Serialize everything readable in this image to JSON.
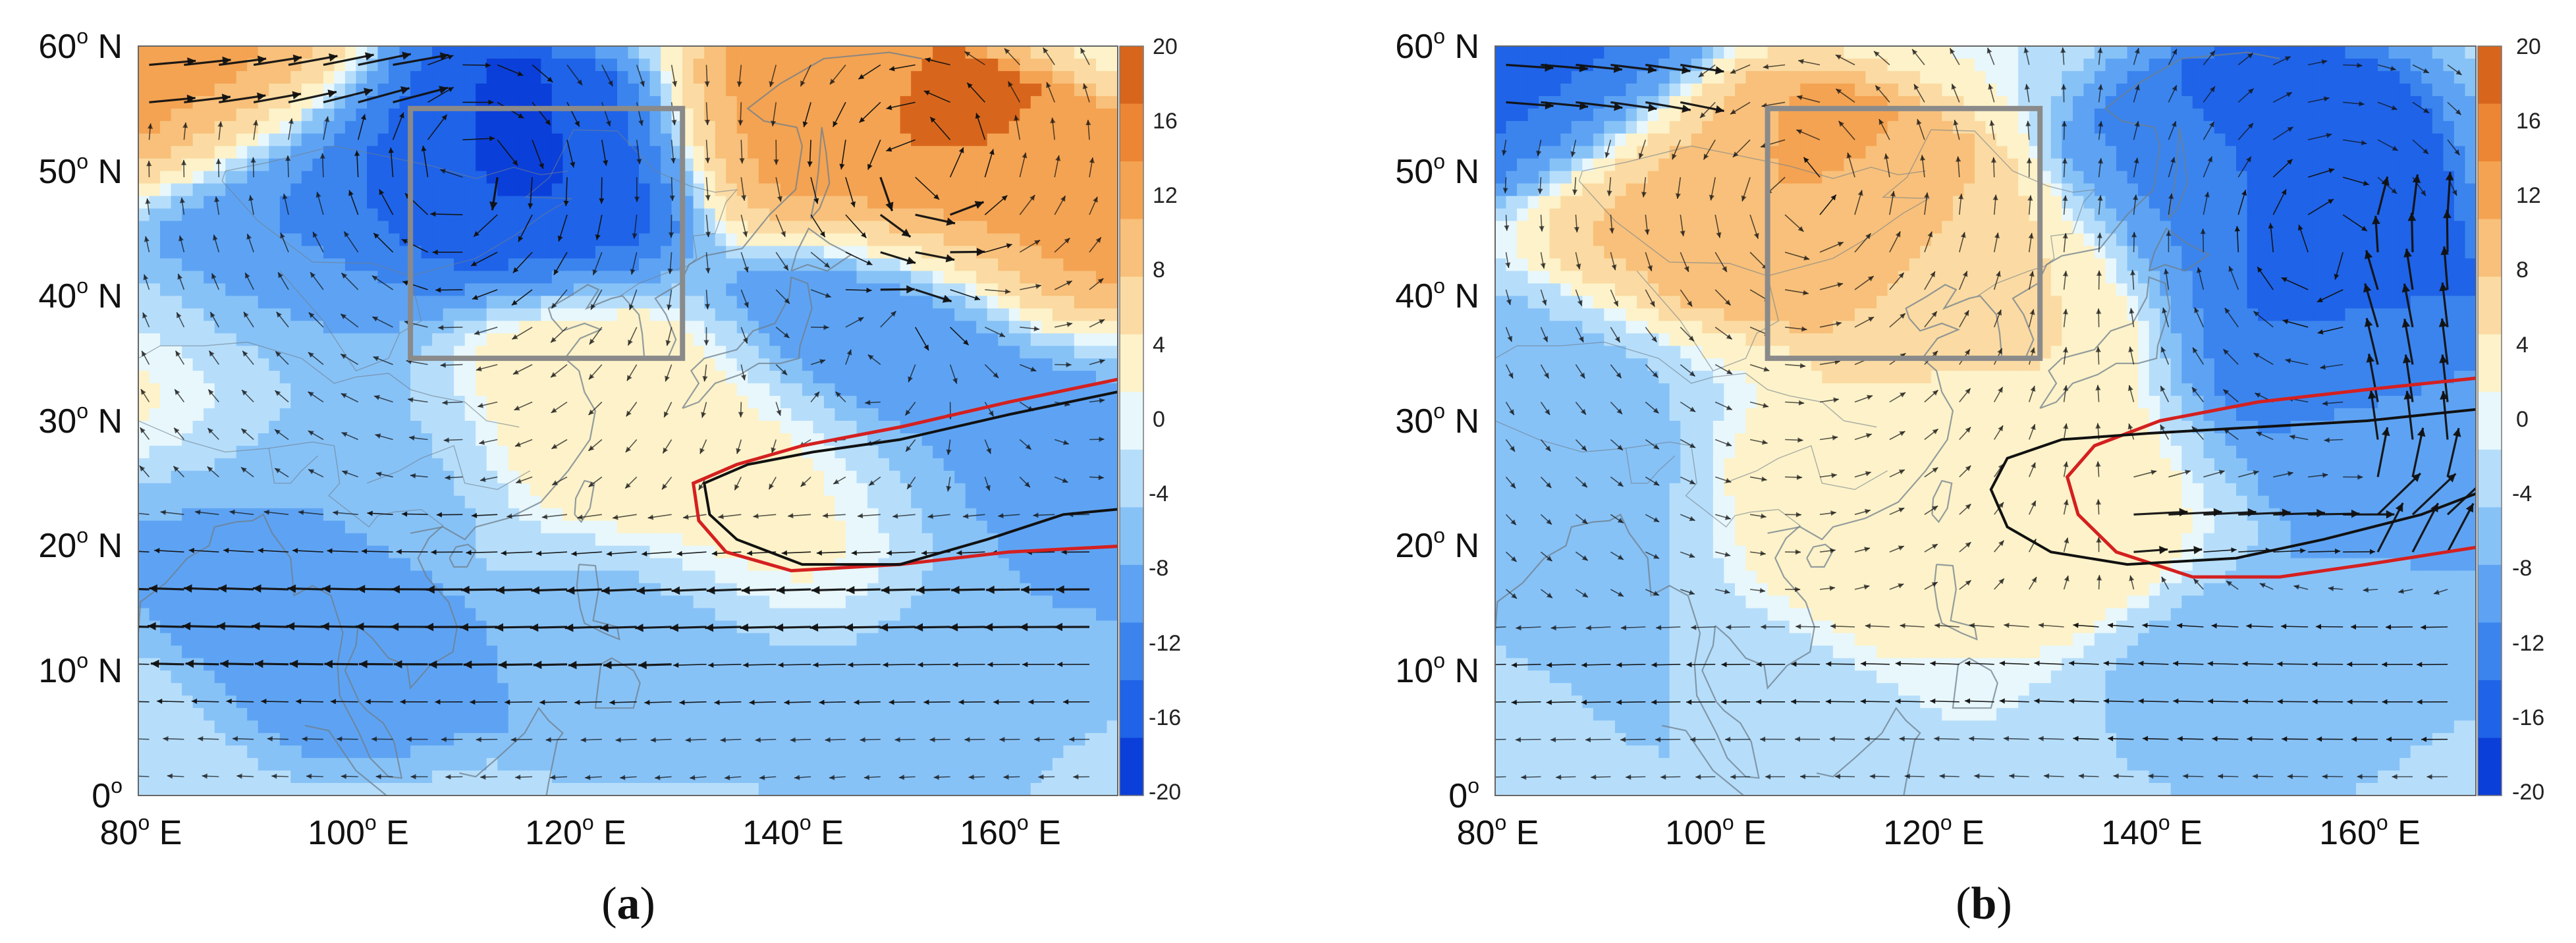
{
  "panels": [
    {
      "id": "a",
      "label_open": "(",
      "label_letter": "a",
      "label_close": ")",
      "y_ticks": [
        {
          "deg": "60",
          "sup": "o",
          "hemi": "N",
          "lat": 60
        },
        {
          "deg": "50",
          "sup": "o",
          "hemi": "N",
          "lat": 50
        },
        {
          "deg": "40",
          "sup": "o",
          "hemi": "N",
          "lat": 40
        },
        {
          "deg": "30",
          "sup": "o",
          "hemi": "N",
          "lat": 30
        },
        {
          "deg": "20",
          "sup": "o",
          "hemi": "N",
          "lat": 20
        },
        {
          "deg": "10",
          "sup": "o",
          "hemi": "N",
          "lat": 10
        },
        {
          "deg": "0",
          "sup": "o",
          "hemi": "",
          "lat": 0
        }
      ],
      "x_ticks": [
        {
          "deg": "80",
          "sup": "o",
          "hemi": "E",
          "lon": 80
        },
        {
          "deg": "100",
          "sup": "o",
          "hemi": "E",
          "lon": 100
        },
        {
          "deg": "120",
          "sup": "o",
          "hemi": "E",
          "lon": 120
        },
        {
          "deg": "140",
          "sup": "o",
          "hemi": "E",
          "lon": 140
        },
        {
          "deg": "160",
          "sup": "o",
          "hemi": "E",
          "lon": 160
        }
      ],
      "colorbar_ticks": [
        "20",
        "16",
        "12",
        "8",
        "4",
        "0",
        "-4",
        "-8",
        "-12",
        "-16",
        "-20"
      ],
      "anomaly_centers": [
        {
          "lon": 80,
          "lat": 60,
          "value": 18
        },
        {
          "lon": 88,
          "lat": 57,
          "value": 12
        },
        {
          "lon": 108,
          "lat": 51,
          "value": -17
        },
        {
          "lon": 118,
          "lat": 50,
          "value": -16
        },
        {
          "lon": 96,
          "lat": 48,
          "value": -11
        },
        {
          "lon": 92,
          "lat": 40,
          "value": -4
        },
        {
          "lon": 152,
          "lat": 51,
          "value": 18
        },
        {
          "lon": 142,
          "lat": 54,
          "value": 14
        },
        {
          "lon": 163,
          "lat": 47,
          "value": 14
        },
        {
          "lon": 148,
          "lat": 39,
          "value": -9
        },
        {
          "lon": 120,
          "lat": 33,
          "value": 3
        },
        {
          "lon": 132,
          "lat": 29,
          "value": 2
        },
        {
          "lon": 140,
          "lat": 22,
          "value": 1.5
        },
        {
          "lon": 82,
          "lat": 33,
          "value": 2
        },
        {
          "lon": 100,
          "lat": 28,
          "value": -3
        },
        {
          "lon": 90,
          "lat": 20,
          "value": -5
        },
        {
          "lon": 100,
          "lat": 10,
          "value": -4
        },
        {
          "lon": 125,
          "lat": 10,
          "value": -4
        },
        {
          "lon": 160,
          "lat": 28,
          "value": -5
        },
        {
          "lon": 165,
          "lat": 15,
          "value": -4
        },
        {
          "lon": 150,
          "lat": 5,
          "value": -3
        }
      ],
      "box": {
        "lon_min": 105,
        "lon_max": 130,
        "lat_min": 35,
        "lat_max": 55
      },
      "contour_red": [
        [
          171,
          33.5
        ],
        [
          160,
          31.5
        ],
        [
          150,
          29.5
        ],
        [
          141,
          28
        ],
        [
          135,
          26.5
        ],
        [
          131,
          25
        ],
        [
          131.5,
          22
        ],
        [
          134,
          19.5
        ],
        [
          140,
          18
        ],
        [
          150,
          18.5
        ],
        [
          160,
          19.5
        ],
        [
          171,
          20
        ]
      ],
      "contour_black": [
        [
          171,
          32.5
        ],
        [
          160,
          30.5
        ],
        [
          150,
          28.5
        ],
        [
          142,
          27.5
        ],
        [
          136,
          26.5
        ],
        [
          132,
          25
        ],
        [
          132.5,
          22.5
        ],
        [
          135,
          20.5
        ],
        [
          141,
          18.5
        ],
        [
          150,
          18.5
        ],
        [
          158,
          20.5
        ],
        [
          165,
          22.5
        ],
        [
          171,
          23
        ]
      ]
    },
    {
      "id": "b",
      "label_open": "(",
      "label_letter": "b",
      "label_close": ")",
      "y_ticks": [
        {
          "deg": "60",
          "sup": "o",
          "hemi": "N",
          "lat": 60
        },
        {
          "deg": "50",
          "sup": "o",
          "hemi": "N",
          "lat": 50
        },
        {
          "deg": "40",
          "sup": "o",
          "hemi": "N",
          "lat": 40
        },
        {
          "deg": "30",
          "sup": "o",
          "hemi": "N",
          "lat": 30
        },
        {
          "deg": "20",
          "sup": "o",
          "hemi": "N",
          "lat": 20
        },
        {
          "deg": "10",
          "sup": "o",
          "hemi": "N",
          "lat": 10
        },
        {
          "deg": "0",
          "sup": "o",
          "hemi": "",
          "lat": 0
        }
      ],
      "x_ticks": [
        {
          "deg": "80",
          "sup": "o",
          "hemi": "E",
          "lon": 80
        },
        {
          "deg": "100",
          "sup": "o",
          "hemi": "E",
          "lon": 100
        },
        {
          "deg": "120",
          "sup": "o",
          "hemi": "E",
          "lon": 120
        },
        {
          "deg": "140",
          "sup": "o",
          "hemi": "E",
          "lon": 140
        },
        {
          "deg": "160",
          "sup": "o",
          "hemi": "E",
          "lon": 160
        }
      ],
      "colorbar_ticks": [
        "20",
        "16",
        "12",
        "8",
        "4",
        "0",
        "-4",
        "-8",
        "-12",
        "-16",
        "-20"
      ],
      "anomaly_centers": [
        {
          "lon": 80,
          "lat": 60,
          "value": -18
        },
        {
          "lon": 85,
          "lat": 58,
          "value": -10
        },
        {
          "lon": 108,
          "lat": 49,
          "value": 14
        },
        {
          "lon": 98,
          "lat": 48,
          "value": 10
        },
        {
          "lon": 118,
          "lat": 44,
          "value": 8
        },
        {
          "lon": 130,
          "lat": 40,
          "value": 4
        },
        {
          "lon": 120,
          "lat": 27,
          "value": 3
        },
        {
          "lon": 128,
          "lat": 22,
          "value": 4
        },
        {
          "lon": 110,
          "lat": 20,
          "value": 3
        },
        {
          "lon": 153,
          "lat": 52,
          "value": -16
        },
        {
          "lon": 156,
          "lat": 42,
          "value": -15
        },
        {
          "lon": 145,
          "lat": 49,
          "value": -8
        },
        {
          "lon": 160,
          "lat": 33,
          "value": -8
        },
        {
          "lon": 168,
          "lat": 25,
          "value": -6
        },
        {
          "lon": 83,
          "lat": 33,
          "value": -3
        },
        {
          "lon": 88,
          "lat": 20,
          "value": -4
        },
        {
          "lon": 100,
          "lat": 10,
          "value": -2
        },
        {
          "lon": 150,
          "lat": 8,
          "value": -4
        },
        {
          "lon": 165,
          "lat": 15,
          "value": -3
        }
      ],
      "box": {
        "lon_min": 105,
        "lon_max": 130,
        "lat_min": 35,
        "lat_max": 55
      },
      "contour_red": [
        [
          171,
          33.5
        ],
        [
          160,
          32.5
        ],
        [
          150,
          31.5
        ],
        [
          141,
          30
        ],
        [
          135,
          28
        ],
        [
          132.5,
          25.5
        ],
        [
          133.5,
          22.5
        ],
        [
          137,
          19.5
        ],
        [
          144,
          17.5
        ],
        [
          152,
          17.5
        ],
        [
          160,
          18.5
        ],
        [
          171,
          20
        ]
      ],
      "contour_black": [
        [
          171,
          31
        ],
        [
          160,
          30
        ],
        [
          150,
          29.5
        ],
        [
          140,
          29
        ],
        [
          132,
          28.5
        ],
        [
          127,
          27
        ],
        [
          125.5,
          24.5
        ],
        [
          127,
          21.5
        ],
        [
          131,
          19.5
        ],
        [
          138,
          18.5
        ],
        [
          148,
          19
        ],
        [
          156,
          20.5
        ],
        [
          165,
          22.5
        ],
        [
          171,
          24.5
        ]
      ]
    }
  ],
  "colors": {
    "contour_red": "#d42020",
    "contour_black": "#111111",
    "box": "#8a8a8a",
    "arrow": "#111111"
  }
}
